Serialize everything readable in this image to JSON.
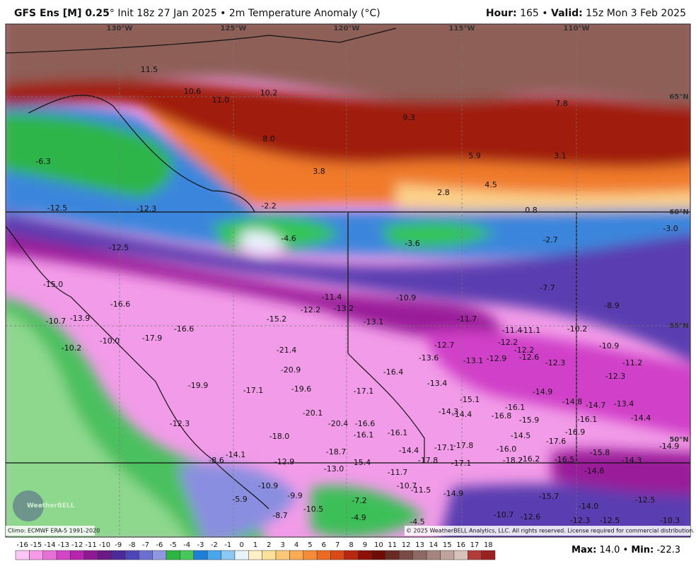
{
  "header": {
    "left": [
      {
        "text": "GFS Ens [M] 0.25",
        "bold": true
      },
      {
        "text": "° Init 18z 27 Jan 2025 • 2m Temperature Anomaly (°C)",
        "bold": false
      }
    ],
    "right": [
      {
        "text": "Hour:",
        "bold": true
      },
      {
        "text": " 165 • ",
        "bold": false
      },
      {
        "text": "Valid:",
        "bold": true
      },
      {
        "text": " 15z Mon 3 Feb 2025",
        "bold": false
      }
    ]
  },
  "map": {
    "longitudes": [
      "130°W",
      "125°W",
      "120°W",
      "115°W",
      "110°W"
    ],
    "latitudes": [
      "65°N",
      "60°N",
      "55°N",
      "50°N"
    ],
    "labels": [
      "11.5",
      "10.6",
      "11.0",
      "10.2",
      "9.3",
      "7.8",
      "8.0",
      "5.9",
      "3.1",
      "3.8",
      "4.5",
      "2.8",
      "-6.3",
      "-12.5",
      "-12.3",
      "-2.2",
      "0.8",
      "-3.0",
      "-4.6",
      "-3.6",
      "-2.7",
      "-12.5",
      "-15.0",
      "-7.7",
      "-16.6",
      "-11.4",
      "-10.9",
      "-12.2",
      "-13.2",
      "-8.9",
      "-13.9",
      "-10.7",
      "-15.2",
      "-13.1",
      "-11.7",
      "-11.4",
      "-11.1",
      "-10.2",
      "-16.6",
      "-17.9",
      "-10.0",
      "-10.9",
      "-10.2",
      "-12.7",
      "-12.2",
      "-12.2",
      "-21.4",
      "-13.6",
      "-13.1",
      "-12.9",
      "-12.6",
      "-12.3",
      "-11.2",
      "-20.9",
      "-16.4",
      "-13.4",
      "-12.3",
      "-19.9",
      "-17.1",
      "-19.6",
      "-17.1",
      "-14.9",
      "-15.1",
      "-14.8",
      "-14.7",
      "-13.4",
      "-16.1",
      "-14.3",
      "-14.4",
      "-16.8",
      "-20.1",
      "-16.1",
      "-14.4",
      "-15.9",
      "-20.4",
      "-16.6",
      "-12.3",
      "-16.1",
      "-16.1",
      "-14.5",
      "-16.9",
      "-18.0",
      "-17.6",
      "-14.9",
      "-17.1",
      "-17.8",
      "-16.0",
      "-18.7",
      "-14.4",
      "-15.8",
      "-14.1",
      "-18.2",
      "-16.2",
      "-16.5",
      "-14.3",
      "-17.8",
      "-17.1",
      "-12.9",
      "-15.4",
      "-8.6",
      "-13.0",
      "-11.7",
      "-14.8",
      "-10.7",
      "-11.5",
      "-14.9",
      "-15.7",
      "-12.5",
      "-14.0",
      "-10.9",
      "-9.9",
      "-5.9",
      "-7.2",
      "-10.5",
      "-10.7",
      "-12.6",
      "-12.3",
      "-12.5",
      "-10.3",
      "-8.7",
      "-4.9",
      "-4.5"
    ]
  },
  "logo": "WeatherBELL",
  "footer": {
    "climo": "Climo: ECMWF ERA-5 1991-2020",
    "copyright": "© 2025 WeatherBELL Analytics, LLC. All rights reserved. License required for commercial distribution."
  },
  "colorbar": {
    "ticks": [
      -16,
      -15,
      -14,
      -13,
      -12,
      -11,
      -10,
      -9,
      -8,
      -7,
      -6,
      -5,
      -4,
      -3,
      -2,
      -1,
      0,
      1,
      2,
      3,
      4,
      5,
      6,
      7,
      8,
      9,
      10,
      11,
      12,
      13,
      14,
      15,
      16,
      17,
      18
    ]
  },
  "stats": [
    {
      "text": "Max:",
      "bold": true
    },
    {
      "text": " 14.0 • ",
      "bold": false
    },
    {
      "text": "Min:",
      "bold": true
    },
    {
      "text": " -22.3",
      "bold": false
    }
  ]
}
